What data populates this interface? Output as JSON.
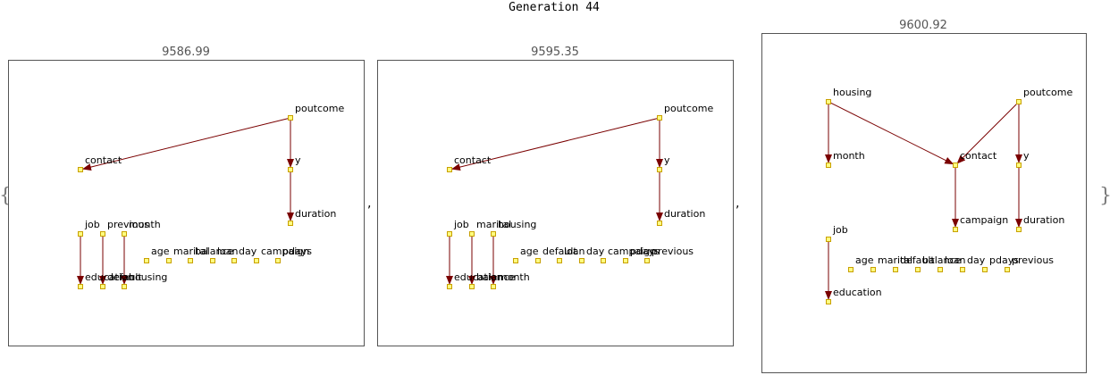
{
  "title": "Generation 44",
  "delimiters": {
    "open": "{",
    "close": "}",
    "sep": ","
  },
  "panels": [
    {
      "score": "9586.99",
      "nodes": [
        {
          "id": "poutcome",
          "label": "poutcome"
        },
        {
          "id": "contact",
          "label": "contact"
        },
        {
          "id": "y",
          "label": "y"
        },
        {
          "id": "duration",
          "label": "duration"
        },
        {
          "id": "job",
          "label": "job"
        },
        {
          "id": "previous",
          "label": "previous"
        },
        {
          "id": "month",
          "label": "month"
        },
        {
          "id": "age",
          "label": "age"
        },
        {
          "id": "marital",
          "label": "marital"
        },
        {
          "id": "balance",
          "label": "balance"
        },
        {
          "id": "loan",
          "label": "loan"
        },
        {
          "id": "day",
          "label": "day"
        },
        {
          "id": "campaign",
          "label": "campaign"
        },
        {
          "id": "pdays",
          "label": "pdays"
        },
        {
          "id": "education",
          "label": "education"
        },
        {
          "id": "default",
          "label": "default"
        },
        {
          "id": "housing",
          "label": "housing"
        }
      ],
      "edges": [
        [
          "poutcome",
          "contact"
        ],
        [
          "poutcome",
          "y"
        ],
        [
          "y",
          "duration"
        ],
        [
          "job",
          "education"
        ],
        [
          "previous",
          "default"
        ],
        [
          "month",
          "housing"
        ]
      ]
    },
    {
      "score": "9595.35",
      "nodes": [
        {
          "id": "poutcome",
          "label": "poutcome"
        },
        {
          "id": "contact",
          "label": "contact"
        },
        {
          "id": "y",
          "label": "y"
        },
        {
          "id": "duration",
          "label": "duration"
        },
        {
          "id": "job",
          "label": "job"
        },
        {
          "id": "marital",
          "label": "marital"
        },
        {
          "id": "housing",
          "label": "housing"
        },
        {
          "id": "age",
          "label": "age"
        },
        {
          "id": "default",
          "label": "default"
        },
        {
          "id": "loan",
          "label": "loan"
        },
        {
          "id": "day",
          "label": "day"
        },
        {
          "id": "campaign",
          "label": "campaign"
        },
        {
          "id": "pdays",
          "label": "pdays"
        },
        {
          "id": "previous",
          "label": "previous"
        },
        {
          "id": "education",
          "label": "education"
        },
        {
          "id": "balance",
          "label": "balance"
        },
        {
          "id": "month",
          "label": "month"
        }
      ],
      "edges": [
        [
          "poutcome",
          "contact"
        ],
        [
          "poutcome",
          "y"
        ],
        [
          "y",
          "duration"
        ],
        [
          "job",
          "education"
        ],
        [
          "marital",
          "balance"
        ],
        [
          "housing",
          "month"
        ]
      ]
    },
    {
      "score": "9600.92",
      "nodes": [
        {
          "id": "housing",
          "label": "housing"
        },
        {
          "id": "poutcome",
          "label": "poutcome"
        },
        {
          "id": "month",
          "label": "month"
        },
        {
          "id": "contact",
          "label": "contact"
        },
        {
          "id": "y",
          "label": "y"
        },
        {
          "id": "campaign",
          "label": "campaign"
        },
        {
          "id": "duration",
          "label": "duration"
        },
        {
          "id": "job",
          "label": "job"
        },
        {
          "id": "age",
          "label": "age"
        },
        {
          "id": "marital",
          "label": "marital"
        },
        {
          "id": "default",
          "label": "default"
        },
        {
          "id": "balance",
          "label": "balance"
        },
        {
          "id": "loan",
          "label": "loan"
        },
        {
          "id": "day",
          "label": "day"
        },
        {
          "id": "pdays",
          "label": "pdays"
        },
        {
          "id": "previous",
          "label": "previous"
        },
        {
          "id": "education",
          "label": "education"
        }
      ],
      "edges": [
        [
          "housing",
          "month"
        ],
        [
          "housing",
          "contact"
        ],
        [
          "poutcome",
          "contact"
        ],
        [
          "poutcome",
          "y"
        ],
        [
          "contact",
          "campaign"
        ],
        [
          "y",
          "duration"
        ],
        [
          "job",
          "education"
        ]
      ]
    }
  ]
}
